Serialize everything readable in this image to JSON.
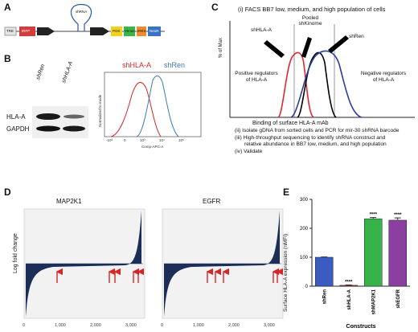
{
  "panels": {
    "A": "A",
    "B": "B",
    "C": "C",
    "D": "D",
    "E": "E"
  },
  "construct": {
    "segments": [
      "TRE",
      "tRFP",
      "PGK",
      "Venus",
      "IRES",
      "NeoR"
    ],
    "hairpin": "shRNA"
  },
  "panelB": {
    "lanes": [
      "shRen",
      "shHLA-A"
    ],
    "bands": [
      "HLA-A",
      "GAPDH"
    ],
    "flow_legend": [
      "shHLA-A",
      "shRen"
    ],
    "flow_ylabel": "Normalized to mode",
    "flow_xlabel": "Comp-APC-A",
    "flow_xticks": [
      "-10³",
      "0",
      "10³",
      "10⁴",
      "10⁵"
    ]
  },
  "panelC": {
    "step1": "(i) FACS BB7 low, medium, and high population of cells",
    "pooled": "Pooled shKinome",
    "curve_labels": [
      "shHLA-A",
      "shRen"
    ],
    "ylabel": "% of Max",
    "positive": "Positive regulators of HLA-A",
    "negative": "Negative regulators of HLA-A",
    "xlabel": "Binding of surface HLA-A mAb",
    "step2": "(ii) Isolate gDNA from sorted cells and PCR for mir-30 shRNA barcode",
    "step3a": "(iii) High-throughput sequencing to identify shRNA construct and",
    "step3b": "relative abundance in BB7 low, medium, and high population",
    "step4": "(iv) Validate"
  },
  "panelD": {
    "ylabel": "Log fold change",
    "plots": [
      {
        "title": "MAP2K1",
        "xticks": [
          "0",
          "1,000",
          "2,000",
          "3,000"
        ]
      },
      {
        "title": "EGFR",
        "xticks": [
          "0",
          "1,000",
          "2,000",
          "3,000"
        ]
      }
    ],
    "colors": {
      "fill": "#1c2e57",
      "arrow": "#d62728"
    }
  },
  "chart_data": [
    {
      "type": "bar",
      "title": "",
      "categories": [
        "shRen",
        "shHLA-A",
        "shMAP2K1",
        "shEGFR"
      ],
      "values": [
        100,
        3,
        233,
        228
      ],
      "errors": [
        1,
        1,
        4,
        8
      ],
      "significance": [
        "",
        "****",
        "****",
        "****"
      ],
      "colors": [
        "#3a5bbf",
        "#c62b2b",
        "#37b34a",
        "#8a3fa0"
      ],
      "ylabel": "Surface HLA-A expression (nMFI)",
      "xlabel": "Constructs",
      "ylim": [
        0,
        300
      ],
      "yticks": [
        "0",
        "100",
        "200",
        "300"
      ]
    }
  ]
}
